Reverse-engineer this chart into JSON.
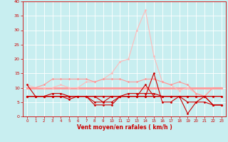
{
  "xlabel": "Vent moyen/en rafales ( km/h )",
  "xlim": [
    -0.5,
    23.5
  ],
  "ylim": [
    0,
    40
  ],
  "yticks": [
    0,
    5,
    10,
    15,
    20,
    25,
    30,
    35,
    40
  ],
  "xticks": [
    0,
    1,
    2,
    3,
    4,
    5,
    6,
    7,
    8,
    9,
    10,
    11,
    12,
    13,
    14,
    15,
    16,
    17,
    18,
    19,
    20,
    21,
    22,
    23
  ],
  "background_color": "#c8eef0",
  "grid_color": "#ffffff",
  "series": [
    {
      "x": [
        0,
        1,
        2,
        3,
        4,
        5,
        6,
        7,
        8,
        9,
        10,
        11,
        12,
        13,
        14,
        15,
        16,
        17,
        18,
        19,
        20,
        21,
        22,
        23
      ],
      "y": [
        11,
        7,
        7,
        7,
        7,
        7,
        7,
        7,
        7,
        7,
        7,
        7,
        7,
        7,
        7,
        7,
        7,
        7,
        7,
        7,
        7,
        7,
        7,
        7
      ],
      "color": "#cc0000",
      "lw": 0.8,
      "marker": "D",
      "ms": 1.5,
      "zorder": 4
    },
    {
      "x": [
        0,
        1,
        2,
        3,
        4,
        5,
        6,
        7,
        8,
        9,
        10,
        11,
        12,
        13,
        14,
        15,
        16,
        17,
        18,
        19,
        20,
        21,
        22,
        23
      ],
      "y": [
        7,
        7,
        7,
        7,
        7,
        7,
        7,
        7,
        4,
        4,
        4,
        7,
        7,
        7,
        7,
        15,
        5,
        5,
        7,
        1,
        5,
        5,
        4,
        4
      ],
      "color": "#cc0000",
      "lw": 0.8,
      "marker": "D",
      "ms": 1.5,
      "zorder": 4
    },
    {
      "x": [
        0,
        1,
        2,
        3,
        4,
        5,
        6,
        7,
        8,
        9,
        10,
        11,
        12,
        13,
        14,
        15,
        16,
        17,
        18,
        19,
        20,
        21,
        22,
        23
      ],
      "y": [
        7,
        7,
        7,
        7,
        7,
        6,
        7,
        7,
        5,
        5,
        7,
        7,
        7,
        7,
        11,
        7,
        7,
        7,
        7,
        5,
        5,
        7,
        4,
        4
      ],
      "color": "#cc0000",
      "lw": 0.8,
      "marker": "D",
      "ms": 1.5,
      "zorder": 4
    },
    {
      "x": [
        0,
        1,
        2,
        3,
        4,
        5,
        6,
        7,
        8,
        9,
        10,
        11,
        12,
        13,
        14,
        15,
        16,
        17,
        18,
        19,
        20,
        21,
        22,
        23
      ],
      "y": [
        7,
        7,
        7,
        7,
        7,
        7,
        7,
        7,
        7,
        5,
        5,
        7,
        7,
        7,
        7,
        7,
        7,
        7,
        7,
        7,
        7,
        7,
        4,
        4
      ],
      "color": "#cc0000",
      "lw": 0.8,
      "marker": "D",
      "ms": 1.5,
      "zorder": 4
    },
    {
      "x": [
        0,
        1,
        2,
        3,
        4,
        5,
        6,
        7,
        8,
        9,
        10,
        11,
        12,
        13,
        14,
        15,
        16,
        17,
        18,
        19,
        20,
        21,
        22,
        23
      ],
      "y": [
        7,
        7,
        7,
        8,
        8,
        7,
        7,
        7,
        7,
        7,
        7,
        7,
        8,
        8,
        8,
        8,
        7,
        7,
        7,
        7,
        7,
        7,
        7,
        7
      ],
      "color": "#cc0000",
      "lw": 0.8,
      "marker": "D",
      "ms": 1.5,
      "zorder": 4
    },
    {
      "x": [
        0,
        1,
        2,
        3,
        4,
        5,
        6,
        7,
        8,
        9,
        10,
        11,
        12,
        13,
        14,
        15,
        16,
        17,
        18,
        19,
        20,
        21,
        22,
        23
      ],
      "y": [
        10,
        10,
        11,
        13,
        13,
        13,
        13,
        13,
        12,
        13,
        13,
        13,
        12,
        12,
        13,
        13,
        12,
        11,
        12,
        11,
        8,
        7,
        10,
        10
      ],
      "color": "#ff9999",
      "lw": 0.8,
      "marker": "D",
      "ms": 1.5,
      "zorder": 3
    },
    {
      "x": [
        0,
        1,
        2,
        3,
        4,
        5,
        6,
        7,
        8,
        9,
        10,
        11,
        12,
        13,
        14,
        15,
        16,
        17,
        18,
        19,
        20,
        21,
        22,
        23
      ],
      "y": [
        10,
        10,
        10,
        10,
        10,
        10,
        10,
        10,
        10,
        10,
        10,
        10,
        10,
        10,
        10,
        10,
        10,
        10,
        10,
        10,
        10,
        10,
        10,
        10
      ],
      "color": "#ff9999",
      "lw": 2.0,
      "marker": null,
      "ms": 0,
      "zorder": 2
    },
    {
      "x": [
        0,
        1,
        2,
        3,
        4,
        5,
        6,
        7,
        8,
        9,
        10,
        11,
        12,
        13,
        14,
        15,
        16,
        17,
        18,
        19,
        20,
        21,
        22,
        23
      ],
      "y": [
        11,
        10,
        10,
        10,
        11,
        10,
        10,
        12,
        12,
        13,
        15,
        19,
        20,
        30,
        37,
        21,
        12,
        11,
        9,
        10,
        8,
        7,
        10,
        10
      ],
      "color": "#ffbbbb",
      "lw": 0.8,
      "marker": "D",
      "ms": 1.5,
      "zorder": 2
    }
  ]
}
